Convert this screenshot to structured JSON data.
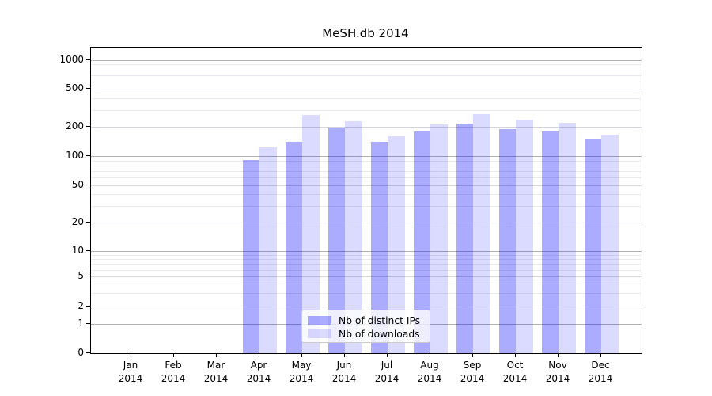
{
  "figure": {
    "title": "MeSH.db 2014"
  },
  "chart_data": {
    "type": "bar",
    "title": "MeSH.db 2014",
    "categories": [
      "Jan",
      "Feb",
      "Mar",
      "Apr",
      "May",
      "Jun",
      "Jul",
      "Aug",
      "Sep",
      "Oct",
      "Nov",
      "Dec"
    ],
    "category_year": "2014",
    "series": [
      {
        "name": "Nb of distinct IPs",
        "color": "#0000ff",
        "alpha": 0.33,
        "hex_on_white": "#aaaaf9",
        "values": [
          0,
          0,
          0,
          91,
          141,
          196,
          140,
          180,
          216,
          188,
          180,
          149
        ]
      },
      {
        "name": "Nb of downloads",
        "color": "#0000ff",
        "alpha": 0.14,
        "hex_on_white": "#dcdcfa",
        "values": [
          0,
          0,
          0,
          124,
          265,
          227,
          161,
          212,
          273,
          237,
          221,
          166
        ]
      }
    ],
    "yscale": "symlog",
    "y_ticks": [
      0,
      1,
      2,
      5,
      10,
      20,
      50,
      100,
      200,
      500,
      1000
    ],
    "y_minor_ticks": [
      3,
      4,
      6,
      7,
      8,
      9,
      30,
      40,
      60,
      70,
      80,
      90,
      300,
      400,
      600,
      700,
      800,
      900
    ],
    "ylim": [
      0,
      1360
    ],
    "xlabel": "",
    "ylabel": "",
    "grid": true,
    "legend_position": "lower-center",
    "colors": {
      "grid_decade": "#b0b0b5",
      "grid_mid": "#d4d4da",
      "grid_minor": "#e9e9ee",
      "axis": "#000000"
    }
  }
}
